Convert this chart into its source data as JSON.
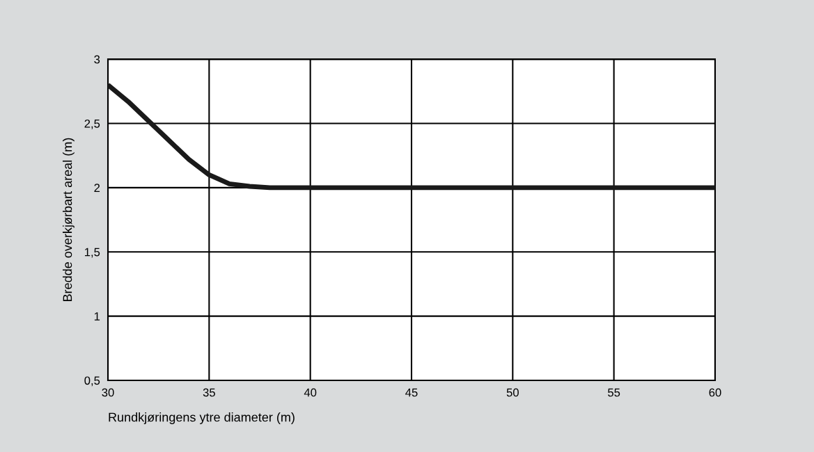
{
  "chart_data": {
    "type": "line",
    "xlabel": "Rundkjøringens ytre diameter (m)",
    "ylabel": "Bredde overkjørbart areal (m)",
    "x": [
      30,
      31,
      32,
      33,
      34,
      35,
      36,
      37,
      38,
      40,
      45,
      50,
      55,
      60
    ],
    "series": [
      {
        "color": "#1a1a1a",
        "values": [
          2.8,
          2.67,
          2.52,
          2.37,
          2.22,
          2.1,
          2.03,
          2.01,
          2.0,
          2.0,
          2.0,
          2.0,
          2.0,
          2.0
        ]
      }
    ],
    "xlim": [
      30,
      60
    ],
    "xticks": [
      30,
      35,
      40,
      45,
      50,
      55,
      60
    ],
    "ylim": [
      0.5,
      3
    ],
    "yticks": [
      {
        "value": 0.5,
        "label": "0,5"
      },
      1,
      {
        "value": 1.5,
        "label": "1,5"
      },
      2,
      {
        "value": 2.5,
        "label": "2,5"
      },
      3
    ],
    "grid": true,
    "marker": "none",
    "line_style": "solid"
  }
}
